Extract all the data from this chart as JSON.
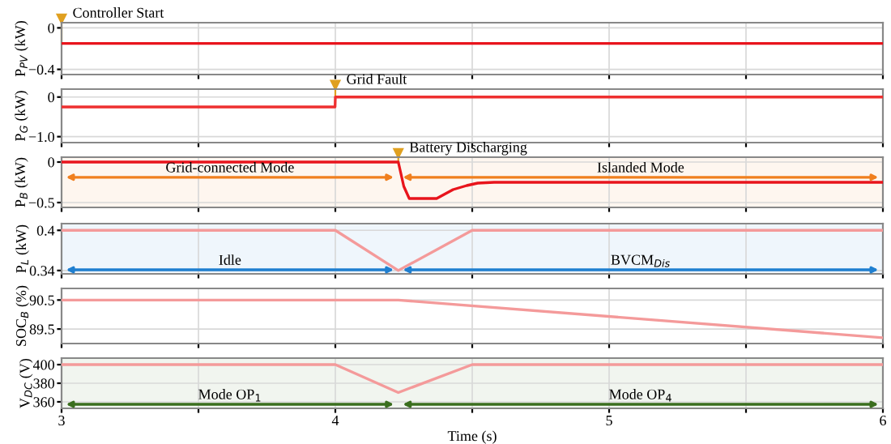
{
  "chart_data": [
    {
      "type": "line",
      "ylabel": "P$_{PV}$ (kW)",
      "x": [
        3,
        3.5,
        4,
        4.5,
        5,
        5.5,
        6
      ],
      "series": [
        {
          "color": "#e8141c",
          "values": [
            -0.15,
            -0.15,
            -0.15,
            -0.15,
            -0.15,
            -0.15,
            -0.15
          ]
        }
      ],
      "xlim": [
        3,
        6
      ],
      "xticks": [
        3,
        {
          "value": 3.5,
          "label": null
        },
        4,
        {
          "value": 4.5,
          "label": null
        },
        5,
        {
          "value": 5.5,
          "label": null
        },
        6
      ],
      "ylim": [
        -0.45,
        0.05
      ],
      "yticks": [
        0,
        {
          "value": -0.4,
          "label": "−0.4"
        }
      ],
      "tick_labels": "y",
      "grid": true,
      "annotations": [
        {
          "text": "Controller Start",
          "x": 3,
          "y": -0.15
        }
      ]
    },
    {
      "type": "line",
      "ylabel": "P$_{G}$ (kW)",
      "x": [
        3,
        3.5,
        3.999,
        4.0,
        4.5,
        5,
        6
      ],
      "series": [
        {
          "color": "#ee3030",
          "values": [
            -0.25,
            -0.25,
            -0.25,
            0,
            0,
            0,
            0
          ]
        }
      ],
      "xlim": [
        3,
        6
      ],
      "xticks": [
        3,
        {
          "value": 3.5,
          "label": null
        },
        4,
        {
          "value": 4.5,
          "label": null
        },
        5,
        {
          "value": 5.5,
          "label": null
        },
        6
      ],
      "ylim": [
        -1.15,
        0.2
      ],
      "yticks": [
        0,
        {
          "value": -1.0,
          "label": "−1.0"
        }
      ],
      "tick_labels": "y",
      "grid": true,
      "annotations": [
        {
          "text": "Grid Fault",
          "x": 4,
          "y": 0
        }
      ]
    },
    {
      "type": "line",
      "ylabel": "P$_{B}$ (kW)",
      "x": [
        3,
        4.23,
        4.25,
        4.27,
        4.3,
        4.37,
        4.43,
        4.48,
        4.52,
        4.58,
        5,
        6
      ],
      "series": [
        {
          "color": "#e8141c",
          "values": [
            0,
            0,
            -0.3,
            -0.45,
            -0.45,
            -0.45,
            -0.34,
            -0.29,
            -0.26,
            -0.25,
            -0.25,
            -0.25
          ]
        }
      ],
      "xlim": [
        3,
        6
      ],
      "xticks": [
        3,
        {
          "value": 3.5,
          "label": null
        },
        4,
        {
          "value": 4.5,
          "label": null
        },
        5,
        {
          "value": 5.5,
          "label": null
        },
        6
      ],
      "ylim": [
        -0.56,
        0.06
      ],
      "yticks": [
        0,
        {
          "value": -0.5,
          "label": "−0.5"
        }
      ],
      "tick_labels": "y",
      "grid": true,
      "annotations": [
        {
          "text": "Battery Discharging",
          "x": 4.23,
          "y": 0
        }
      ],
      "bands": [
        {
          "axis": "x",
          "from": 3,
          "to": 4.23,
          "label": "Grid-connected Mode",
          "color": "#f07f1e"
        },
        {
          "axis": "x",
          "from": 4.23,
          "to": 6,
          "label": "Islanded Mode",
          "color": "#f07f1e"
        }
      ]
    },
    {
      "type": "line",
      "ylabel": "P$_{L}$ (kW)",
      "x": [
        3,
        4,
        4.23,
        4.5,
        6
      ],
      "series": [
        {
          "color": "#f49a9a",
          "values": [
            0.4,
            0.4,
            0.34,
            0.4,
            0.4
          ]
        }
      ],
      "xlim": [
        3,
        6
      ],
      "xticks": [
        3,
        {
          "value": 3.5,
          "label": null
        },
        4,
        {
          "value": 4.5,
          "label": null
        },
        5,
        {
          "value": 5.5,
          "label": null
        },
        6
      ],
      "ylim": [
        0.335,
        0.41
      ],
      "yticks": [
        0.34,
        0.4
      ],
      "tick_labels": "y",
      "grid": true,
      "bands": [
        {
          "axis": "x",
          "from": 3,
          "to": 4.23,
          "label": "Idle",
          "color": "#1f7fd0"
        },
        {
          "axis": "x",
          "from": 4.23,
          "to": 6,
          "label": "BVCM$_{Dis}$",
          "color": "#1f7fd0"
        }
      ]
    },
    {
      "type": "line",
      "ylabel": "SOC$_{B}$ (%)",
      "x": [
        3,
        4.23,
        6
      ],
      "series": [
        {
          "color": "#f49a9a",
          "values": [
            90.5,
            90.5,
            89.2
          ]
        }
      ],
      "xlim": [
        3,
        6
      ],
      "xticks": [
        3,
        {
          "value": 3.5,
          "label": null
        },
        4,
        {
          "value": 4.5,
          "label": null
        },
        5,
        {
          "value": 5.5,
          "label": null
        },
        6
      ],
      "ylim": [
        89.0,
        90.9
      ],
      "yticks": [
        89.5,
        90.5
      ],
      "tick_labels": "y",
      "grid": true
    },
    {
      "type": "line",
      "ylabel": "V$_{DC}$ (V)",
      "xlabel": "Time (s)",
      "x": [
        3,
        4,
        4.23,
        4.5,
        6
      ],
      "series": [
        {
          "color": "#f49a9a",
          "values": [
            400,
            400,
            370,
            400,
            400
          ]
        }
      ],
      "xlim": [
        3,
        6
      ],
      "xticks": [
        3,
        {
          "value": 3.5,
          "label": null
        },
        4,
        {
          "value": 4.5,
          "label": null
        },
        5,
        {
          "value": 5.5,
          "label": null
        },
        6
      ],
      "ylim": [
        353,
        407
      ],
      "yticks": [
        360,
        380,
        400
      ],
      "grid": true,
      "bands": [
        {
          "axis": "x",
          "from": 3,
          "to": 4.23,
          "label": "Mode OP$_{1}$",
          "color": "#3a6e1e"
        },
        {
          "axis": "x",
          "from": 4.23,
          "to": 6,
          "label": "Mode OP$_{4}$",
          "color": "#3a6e1e"
        }
      ]
    }
  ]
}
